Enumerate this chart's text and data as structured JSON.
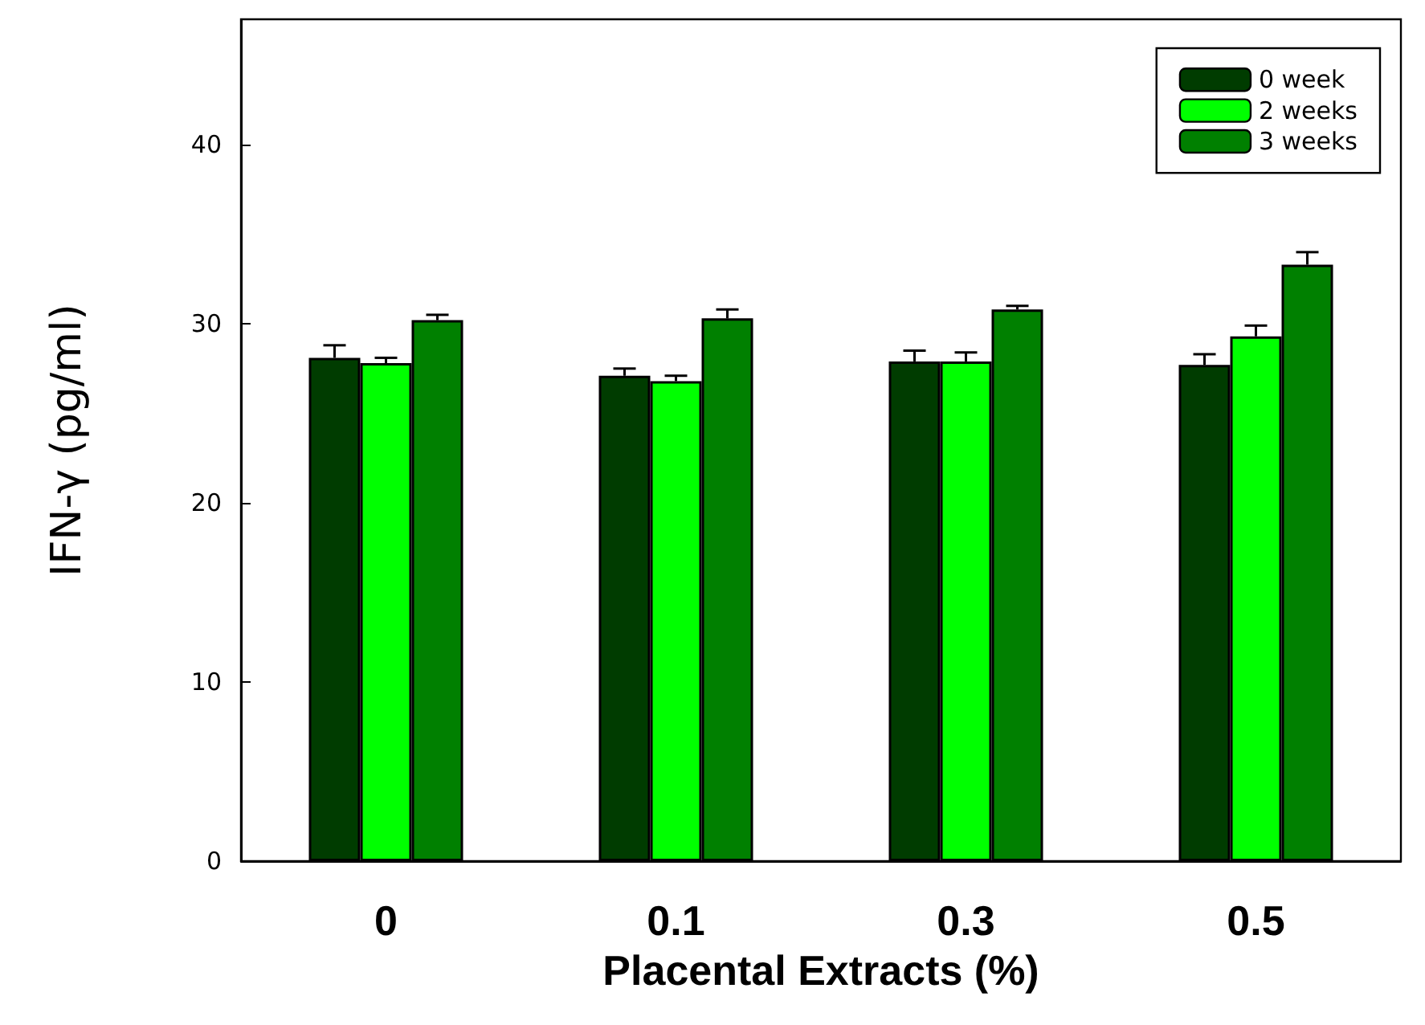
{
  "chart_data": {
    "type": "bar",
    "xlabel": "Placental Extracts (%)",
    "ylabel": "IFN-γ (pg/ml)",
    "categories": [
      "0",
      "0.1",
      "0.3",
      "0.5"
    ],
    "series": [
      {
        "name": "0 week",
        "color": "#003c00",
        "values": [
          28.1,
          27.1,
          27.9,
          27.7
        ],
        "errors": [
          [
            28.1,
            28.8
          ],
          [
            27.1,
            27.5
          ],
          [
            27.9,
            28.5
          ],
          [
            27.7,
            28.3
          ]
        ]
      },
      {
        "name": "2 weeks",
        "color": "#00ff00",
        "values": [
          27.8,
          26.8,
          27.9,
          29.3
        ],
        "errors": [
          [
            27.8,
            28.1
          ],
          [
            26.8,
            27.1
          ],
          [
            27.9,
            28.4
          ],
          [
            29.3,
            29.9
          ]
        ]
      },
      {
        "name": "3 weeks",
        "color": "#008000",
        "values": [
          30.2,
          30.3,
          30.8,
          33.3
        ],
        "errors": [
          [
            30.2,
            30.5
          ],
          [
            30.3,
            30.8
          ],
          [
            30.8,
            31.0
          ],
          [
            33.3,
            34.0
          ]
        ]
      }
    ],
    "ylim": [
      0,
      47
    ],
    "yticks": [
      0,
      10,
      20,
      30,
      40
    ],
    "grid": false,
    "legend": "top right"
  }
}
